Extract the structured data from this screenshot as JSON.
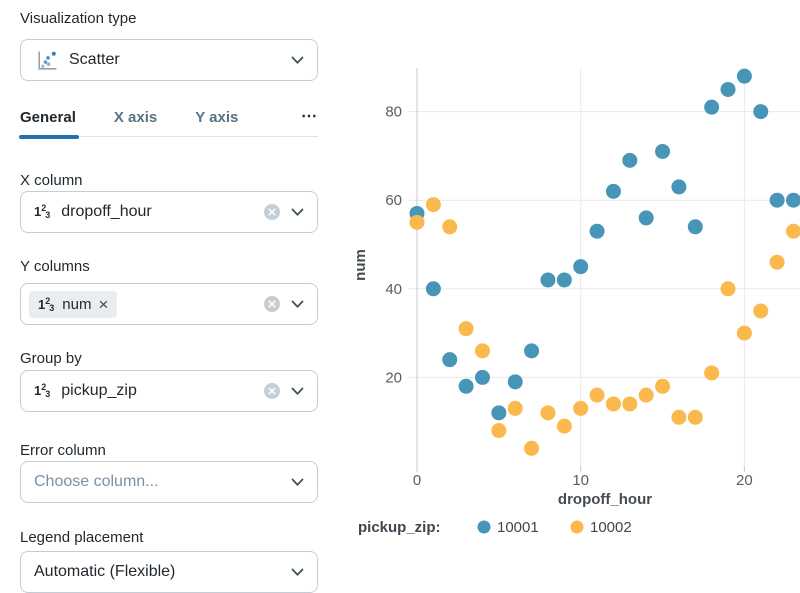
{
  "panel": {
    "viz_type": {
      "label": "Visualization type",
      "value": "Scatter",
      "icon": "scatter-plot-icon"
    },
    "tabs": {
      "general": "General",
      "x_axis": "X axis",
      "y_axis": "Y axis",
      "more": "⋯"
    },
    "numicon": {
      "one": "1",
      "two": "2",
      "three": "3"
    },
    "x_column": {
      "label": "X column",
      "value": "dropoff_hour"
    },
    "y_columns": {
      "label": "Y columns",
      "chip": "num",
      "remove": "×"
    },
    "group_by": {
      "label": "Group by",
      "value": "pickup_zip"
    },
    "error_column": {
      "label": "Error column",
      "placeholder": "Choose column..."
    },
    "legend_placement": {
      "label": "Legend placement",
      "value": "Automatic (Flexible)"
    }
  },
  "colors": {
    "accent": "#2272B4",
    "series_blue": "#4796B8",
    "series_yellow": "#FBB84D",
    "grid": "#E9E9E9",
    "zeroline": "#C8CBCE",
    "tick_text": "#565E64",
    "axis_title": "#444C52"
  },
  "chart_data": {
    "type": "scatter",
    "title": "",
    "xlabel": "dropoff_hour",
    "ylabel": "num",
    "x_ticks": [
      0,
      10,
      20
    ],
    "y_ticks": [
      20,
      40,
      60,
      80
    ],
    "xlim": [
      -0.6,
      23.4
    ],
    "ylim": [
      0,
      90
    ],
    "grid": true,
    "legend": {
      "title": "pickup_zip:",
      "position": "bottom"
    },
    "x": [
      0,
      1,
      2,
      3,
      4,
      5,
      6,
      7,
      8,
      9,
      10,
      11,
      12,
      13,
      14,
      15,
      16,
      17,
      18,
      19,
      20,
      21,
      22,
      23
    ],
    "series": [
      {
        "name": "10001",
        "color": "#4796B8",
        "y": [
          57,
          40,
          24,
          18,
          20,
          12,
          19,
          26,
          42,
          42,
          45,
          53,
          62,
          69,
          56,
          71,
          63,
          54,
          81,
          85,
          88,
          80,
          60,
          60
        ]
      },
      {
        "name": "10002",
        "color": "#FBB84D",
        "y": [
          55,
          59,
          54,
          31,
          26,
          8,
          13,
          4,
          12,
          9,
          13,
          16,
          14,
          14,
          16,
          18,
          11,
          11,
          21,
          40,
          30,
          35,
          46,
          53
        ]
      }
    ]
  }
}
